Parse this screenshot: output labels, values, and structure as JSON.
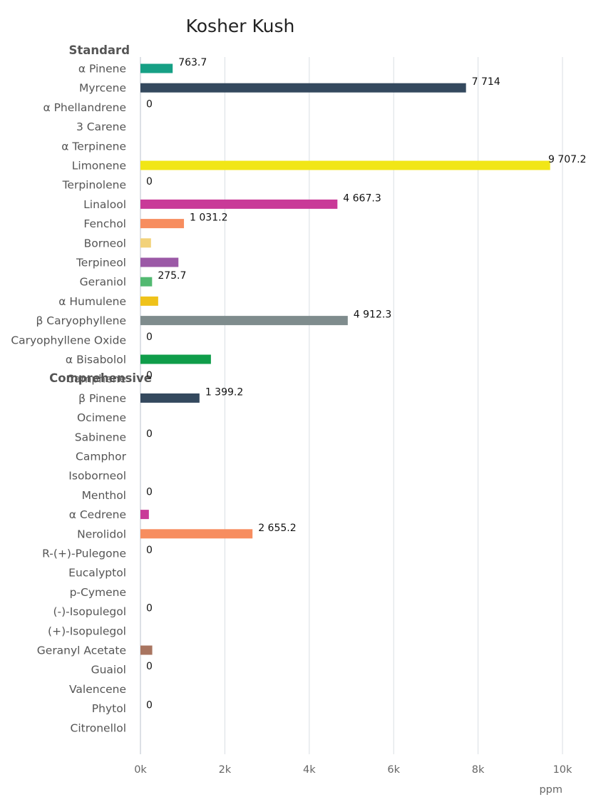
{
  "chart_data": {
    "type": "bar",
    "orientation": "horizontal",
    "title": "Kosher Kush",
    "xlabel": "ppm",
    "xlim": [
      0,
      10000
    ],
    "xticks": [
      0,
      2000,
      4000,
      6000,
      8000,
      10000
    ],
    "xtick_labels": [
      "0k",
      "2k",
      "4k",
      "6k",
      "8k",
      "10k"
    ],
    "grid": true,
    "groups": [
      {
        "name": "Standard",
        "items": [
          {
            "label": "α Pinene",
            "value": 763.7,
            "color": "#16a085",
            "data_label": "763.7"
          },
          {
            "label": "Myrcene",
            "value": 7714,
            "color": "#34495e",
            "data_label": "7 714"
          },
          {
            "label": "α Phellandrene",
            "value": 0,
            "color": "#34495e",
            "data_label": "0"
          },
          {
            "label": "3 Carene",
            "value": 0,
            "color": "#2980b9",
            "data_label": ""
          },
          {
            "label": "α Terpinene",
            "value": 0,
            "color": "#2980b9",
            "data_label": ""
          },
          {
            "label": "Limonene",
            "value": 9707.2,
            "color": "#f1e617",
            "data_label": "9 707.2"
          },
          {
            "label": "Terpinolene",
            "value": 0,
            "color": "#2980b9",
            "data_label": "0"
          },
          {
            "label": "Linalool",
            "value": 4667.3,
            "color": "#c93a98",
            "data_label": "4 667.3"
          },
          {
            "label": "Fenchol",
            "value": 1031.2,
            "color": "#f78d5f",
            "data_label": "1 031.2"
          },
          {
            "label": "Borneol",
            "value": 250,
            "color": "#f2d27a",
            "data_label": ""
          },
          {
            "label": "Terpineol",
            "value": 900,
            "color": "#9b59a6",
            "data_label": ""
          },
          {
            "label": "Geraniol",
            "value": 275.7,
            "color": "#52b971",
            "data_label": "275.7"
          },
          {
            "label": "α Humulene",
            "value": 420,
            "color": "#efc21a",
            "data_label": ""
          },
          {
            "label": "β Caryophyllene",
            "value": 4912.3,
            "color": "#7f8c8d",
            "data_label": "4 912.3"
          },
          {
            "label": "Caryophyllene Oxide",
            "value": 0,
            "color": "#2980b9",
            "data_label": "0"
          },
          {
            "label": "α Bisabolol",
            "value": 1670,
            "color": "#0f9d4a",
            "data_label": ""
          }
        ]
      },
      {
        "name": "Comprehensive",
        "items": [
          {
            "label": "Camphene",
            "value": 0,
            "color": "#2980b9",
            "data_label": "0"
          },
          {
            "label": "β Pinene",
            "value": 1399.2,
            "color": "#34495e",
            "data_label": "1 399.2"
          },
          {
            "label": "Ocimene",
            "value": 0,
            "color": "#2980b9",
            "data_label": ""
          },
          {
            "label": "Sabinene",
            "value": 0,
            "color": "#2980b9",
            "data_label": "0"
          },
          {
            "label": "Camphor",
            "value": 0,
            "color": "#2980b9",
            "data_label": ""
          },
          {
            "label": "Isoborneol",
            "value": 0,
            "color": "#2980b9",
            "data_label": ""
          },
          {
            "label": "Menthol",
            "value": 0,
            "color": "#2980b9",
            "data_label": "0"
          },
          {
            "label": "α Cedrene",
            "value": 200,
            "color": "#c93a98",
            "data_label": ""
          },
          {
            "label": "Nerolidol",
            "value": 2655.2,
            "color": "#f78d5f",
            "data_label": "2 655.2"
          },
          {
            "label": "R-(+)-Pulegone",
            "value": 0,
            "color": "#2980b9",
            "data_label": "0"
          },
          {
            "label": "Eucalyptol",
            "value": 0,
            "color": "#2980b9",
            "data_label": ""
          },
          {
            "label": "p-Cymene",
            "value": 0,
            "color": "#2980b9",
            "data_label": ""
          },
          {
            "label": "(-)-Isopulegol",
            "value": 0,
            "color": "#2980b9",
            "data_label": "0"
          },
          {
            "label": "(+)-Isopulegol",
            "value": 0,
            "color": "#2980b9",
            "data_label": ""
          },
          {
            "label": "Geranyl Acetate",
            "value": 280,
            "color": "#a97560",
            "data_label": ""
          },
          {
            "label": "Guaiol",
            "value": 0,
            "color": "#2980b9",
            "data_label": "0"
          },
          {
            "label": "Valencene",
            "value": 0,
            "color": "#2980b9",
            "data_label": ""
          },
          {
            "label": "Phytol",
            "value": 0,
            "color": "#2980b9",
            "data_label": "0"
          },
          {
            "label": "Citronellol",
            "value": 0,
            "color": "#2980b9",
            "data_label": ""
          }
        ]
      }
    ]
  }
}
